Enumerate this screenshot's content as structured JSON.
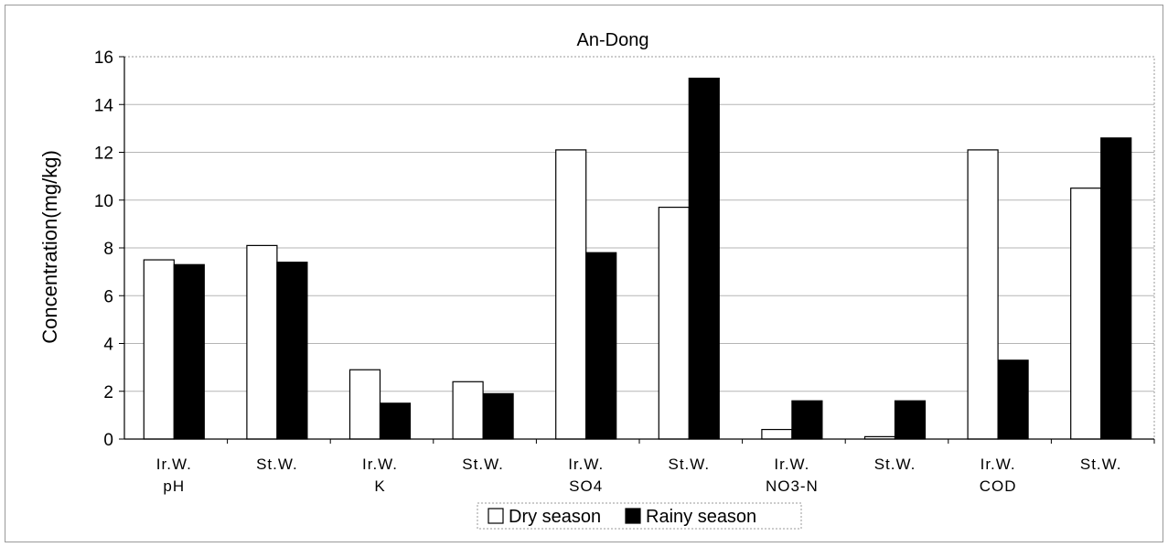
{
  "chart_data": {
    "type": "bar",
    "title": "An-Dong",
    "ylabel": "Concentration(mg/kg)",
    "xlabel": "",
    "ylim": [
      0,
      16
    ],
    "yticks": [
      "0",
      "2",
      "4",
      "6",
      "8",
      "10",
      "12",
      "14",
      "16"
    ],
    "grid": true,
    "legend_position": "bottom",
    "categories": [
      [
        "Ir.W.",
        "pH"
      ],
      [
        "St.W.",
        ""
      ],
      [
        "Ir.W.",
        "K"
      ],
      [
        "St.W.",
        ""
      ],
      [
        "Ir.W.",
        "SO4"
      ],
      [
        "St.W.",
        ""
      ],
      [
        "Ir.W.",
        "NO3-N"
      ],
      [
        "St.W.",
        ""
      ],
      [
        "Ir.W.",
        "COD"
      ],
      [
        "St.W.",
        ""
      ]
    ],
    "series": [
      {
        "name": "Dry season",
        "color": "#ffffff",
        "values": [
          7.5,
          8.1,
          2.9,
          2.4,
          12.1,
          9.7,
          0.4,
          0.1,
          12.1,
          10.5
        ]
      },
      {
        "name": "Rainy season",
        "color": "#000000",
        "values": [
          7.3,
          7.4,
          1.5,
          1.9,
          7.8,
          15.1,
          1.6,
          1.6,
          3.3,
          12.6
        ]
      }
    ]
  }
}
